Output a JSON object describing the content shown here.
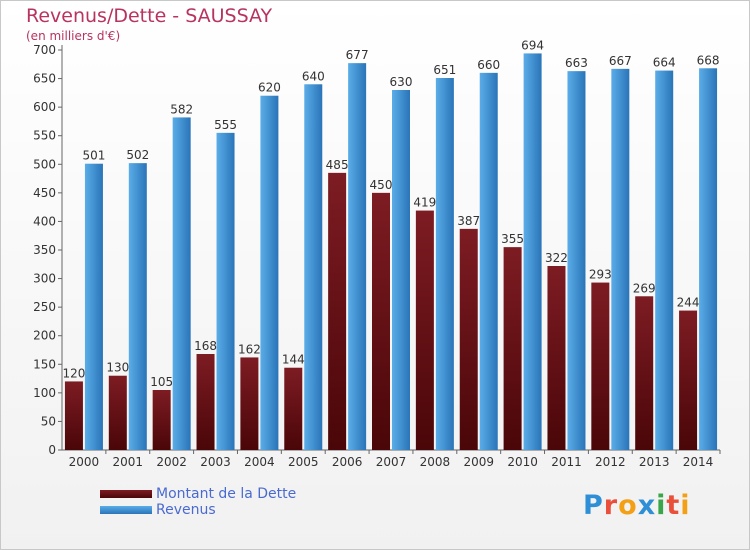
{
  "title": "Revenus/Dette - SAUSSAY",
  "subtitle": "(en milliers d'€)",
  "brand": {
    "name": "Proxiti",
    "letters": [
      {
        "char": "P",
        "color": "#2f8fd6"
      },
      {
        "char": "r",
        "color": "#e94f3a"
      },
      {
        "char": "o",
        "color": "#f4a017"
      },
      {
        "char": "x",
        "color": "#2f8fd6"
      },
      {
        "char": "i",
        "color": "#3aa64a"
      },
      {
        "char": "t",
        "color": "#e94f3a"
      },
      {
        "char": "i",
        "color": "#f4a017"
      }
    ]
  },
  "colors": {
    "dette": "#7d1c23",
    "dette_dark": "#4a0608",
    "revenus": "#5aade8",
    "revenus_dark": "#2a74b8",
    "text": "#333333",
    "title": "#b8335e",
    "legend_text": "#4a6ad0"
  },
  "chart_data": {
    "type": "bar",
    "title": "Revenus/Dette - SAUSSAY",
    "subtitle": "(en milliers d'€)",
    "xlabel": "",
    "ylabel": "",
    "ylim": [
      0,
      700
    ],
    "yticks": [
      0,
      50,
      100,
      150,
      200,
      250,
      300,
      350,
      400,
      450,
      500,
      550,
      600,
      650,
      700
    ],
    "grid": false,
    "legend_position": "bottom-left",
    "categories": [
      "2000",
      "2001",
      "2002",
      "2003",
      "2004",
      "2005",
      "2006",
      "2007",
      "2008",
      "2009",
      "2010",
      "2011",
      "2012",
      "2013",
      "2014"
    ],
    "series": [
      {
        "name": "Montant de la Dette",
        "values": [
          120,
          130,
          105,
          168,
          162,
          144,
          485,
          450,
          419,
          387,
          355,
          322,
          293,
          269,
          244
        ]
      },
      {
        "name": "Revenus",
        "values": [
          501,
          502,
          582,
          555,
          620,
          640,
          677,
          630,
          651,
          660,
          694,
          663,
          667,
          664,
          668
        ]
      }
    ]
  }
}
